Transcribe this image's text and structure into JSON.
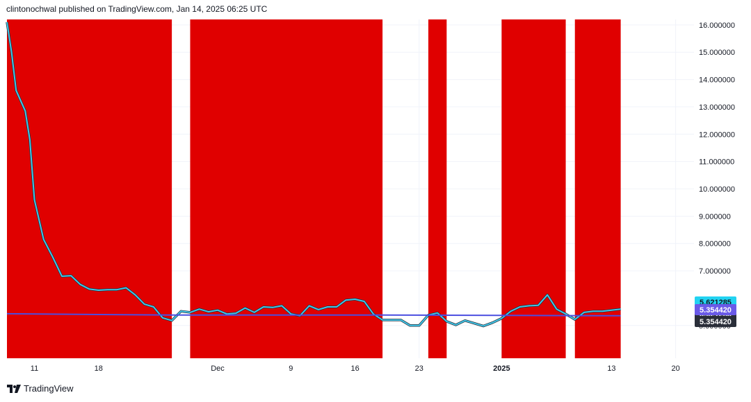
{
  "header": {
    "attribution": "clintonochwal published on TradingView.com, Jan 14, 2025 06:25 UTC"
  },
  "footer": {
    "brand": "TradingView",
    "logo_icon": "tradingview-logo-icon"
  },
  "colors": {
    "background": "#ffffff",
    "highlight_band": "#e00000",
    "price_line": "#3fc6e8",
    "price_line_outline": "#2a2e39",
    "ma_line": "#4b4ee0",
    "price_badge": "#22d3f2",
    "ma_badge": "#6a5ae8",
    "dark_badge": "#2a2e39",
    "grid": "#f0f3fa",
    "axis_text": "#131722"
  },
  "chart_data": {
    "type": "line",
    "title": "",
    "xlabel": "",
    "ylabel": "",
    "x_start": "2024-11-08",
    "x_end": "2025-01-22",
    "ylim": [
      3.8,
      16.2
    ],
    "grid": true,
    "y_ticks": [
      "16.000000",
      "15.000000",
      "14.000000",
      "13.000000",
      "12.000000",
      "11.000000",
      "10.000000",
      "9.000000",
      "8.000000",
      "7.000000",
      "5.000000"
    ],
    "x_ticks": [
      {
        "date": "2024-11-11",
        "label": "11",
        "bold": false
      },
      {
        "date": "2024-11-18",
        "label": "18",
        "bold": false
      },
      {
        "date": "2024-12-01",
        "label": "Dec",
        "bold": false
      },
      {
        "date": "2024-12-09",
        "label": "9",
        "bold": false
      },
      {
        "date": "2024-12-16",
        "label": "16",
        "bold": false
      },
      {
        "date": "2024-12-23",
        "label": "23",
        "bold": false
      },
      {
        "date": "2025-01-01",
        "label": "2025",
        "bold": true
      },
      {
        "date": "2025-01-13",
        "label": "13",
        "bold": false
      },
      {
        "date": "2025-01-20",
        "label": "20",
        "bold": false
      }
    ],
    "highlight_ranges": [
      {
        "start": "2024-11-08",
        "end": "2024-11-26"
      },
      {
        "start": "2024-11-28",
        "end": "2024-12-19"
      },
      {
        "start": "2024-12-24",
        "end": "2024-12-26"
      },
      {
        "start": "2025-01-01",
        "end": "2025-01-08"
      },
      {
        "start": "2025-01-09",
        "end": "2025-01-14"
      }
    ],
    "series": [
      {
        "key": "price",
        "points": [
          [
            "2024-11-08",
            16.1
          ],
          [
            "2024-11-08T12",
            15.0
          ],
          [
            "2024-11-09",
            13.6
          ],
          [
            "2024-11-10",
            12.85
          ],
          [
            "2024-11-10T12",
            11.8
          ],
          [
            "2024-11-11",
            9.6
          ],
          [
            "2024-11-12",
            8.15
          ],
          [
            "2024-11-13",
            7.5
          ],
          [
            "2024-11-14",
            6.8
          ],
          [
            "2024-11-15",
            6.82
          ],
          [
            "2024-11-16",
            6.5
          ],
          [
            "2024-11-17",
            6.33
          ],
          [
            "2024-11-18",
            6.29
          ],
          [
            "2024-11-19",
            6.31
          ],
          [
            "2024-11-20",
            6.31
          ],
          [
            "2024-11-21",
            6.38
          ],
          [
            "2024-11-22",
            6.12
          ],
          [
            "2024-11-23",
            5.78
          ],
          [
            "2024-11-24",
            5.68
          ],
          [
            "2024-11-25",
            5.28
          ],
          [
            "2024-11-26",
            5.18
          ],
          [
            "2024-11-27",
            5.52
          ],
          [
            "2024-11-28",
            5.48
          ],
          [
            "2024-11-29",
            5.6
          ],
          [
            "2024-11-30",
            5.5
          ],
          [
            "2024-12-01",
            5.56
          ],
          [
            "2024-12-02",
            5.42
          ],
          [
            "2024-12-03",
            5.45
          ],
          [
            "2024-12-04",
            5.64
          ],
          [
            "2024-12-05",
            5.48
          ],
          [
            "2024-12-06",
            5.68
          ],
          [
            "2024-12-07",
            5.66
          ],
          [
            "2024-12-08",
            5.72
          ],
          [
            "2024-12-09",
            5.42
          ],
          [
            "2024-12-10",
            5.36
          ],
          [
            "2024-12-11",
            5.72
          ],
          [
            "2024-12-12",
            5.58
          ],
          [
            "2024-12-13",
            5.68
          ],
          [
            "2024-12-14",
            5.68
          ],
          [
            "2024-12-15",
            5.93
          ],
          [
            "2024-12-16",
            5.96
          ],
          [
            "2024-12-17",
            5.88
          ],
          [
            "2024-12-18",
            5.42
          ],
          [
            "2024-12-19",
            5.2
          ],
          [
            "2024-12-20",
            5.2
          ],
          [
            "2024-12-21",
            5.2
          ],
          [
            "2024-12-22",
            5.0
          ],
          [
            "2024-12-23",
            5.0
          ],
          [
            "2024-12-24",
            5.38
          ],
          [
            "2024-12-25",
            5.46
          ],
          [
            "2024-12-26",
            5.15
          ],
          [
            "2024-12-27",
            5.02
          ],
          [
            "2024-12-28",
            5.18
          ],
          [
            "2024-12-29",
            5.08
          ],
          [
            "2024-12-30",
            4.98
          ],
          [
            "2024-12-31",
            5.1
          ],
          [
            "2025-01-01",
            5.26
          ],
          [
            "2025-01-02",
            5.52
          ],
          [
            "2025-01-03",
            5.68
          ],
          [
            "2025-01-04",
            5.72
          ],
          [
            "2025-01-05",
            5.74
          ],
          [
            "2025-01-06",
            6.12
          ],
          [
            "2025-01-07",
            5.6
          ],
          [
            "2025-01-08",
            5.42
          ],
          [
            "2025-01-09",
            5.22
          ],
          [
            "2025-01-10",
            5.48
          ],
          [
            "2025-01-11",
            5.52
          ],
          [
            "2025-01-12",
            5.52
          ],
          [
            "2025-01-13",
            5.56
          ],
          [
            "2025-01-14",
            5.6
          ]
        ]
      },
      {
        "key": "moving_average",
        "points": [
          [
            "2024-11-08",
            5.43
          ],
          [
            "2024-11-26",
            5.38
          ],
          [
            "2024-12-19",
            5.38
          ],
          [
            "2025-01-01",
            5.37
          ],
          [
            "2025-01-09",
            5.36
          ],
          [
            "2025-01-14",
            5.354
          ]
        ]
      }
    ],
    "price_labels": [
      {
        "value": 5.621285,
        "text": "5.621285",
        "style": "price"
      },
      {
        "value": 5.621285,
        "text": "5.621285",
        "style": "dark"
      },
      {
        "value": 5.35442,
        "text": "5.354420",
        "style": "ma"
      },
      {
        "value": 5.35442,
        "text": "5.354420",
        "style": "dark"
      }
    ]
  }
}
